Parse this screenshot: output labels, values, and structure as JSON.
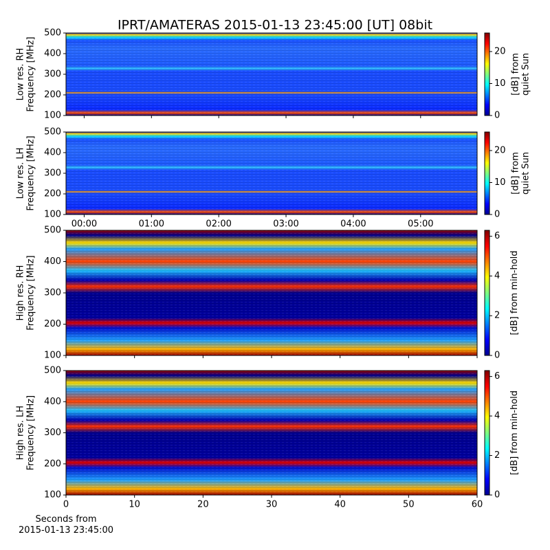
{
  "chart_data": [
    {
      "type": "spectrogram",
      "title": "IPRT/AMATERAS 2015-01-13 23:45:00 [UT]   08bit",
      "ylabel": [
        "Low res. RH",
        "Frequency [MHz]"
      ],
      "ylim": [
        100,
        500
      ],
      "yticks": [
        100,
        200,
        300,
        400,
        500
      ],
      "colorbar_label": [
        "[dB] from",
        "quiet Sun"
      ],
      "clim": [
        0,
        25.8
      ],
      "cticks": [
        0,
        10,
        20
      ]
    },
    {
      "type": "spectrogram",
      "ylabel": [
        "Low res. LH",
        "Frequency [MHz]"
      ],
      "ylim": [
        100,
        500
      ],
      "yticks": [
        100,
        200,
        300,
        400,
        500
      ],
      "xlim": [
        -0.27,
        5.84
      ],
      "xticks": [
        {
          "value": 0,
          "label": "00:00"
        },
        {
          "value": 1,
          "label": "01:00"
        },
        {
          "value": 2,
          "label": "02:00"
        },
        {
          "value": 3,
          "label": "03:00"
        },
        {
          "value": 4,
          "label": "04:00"
        },
        {
          "value": 5,
          "label": "05:00"
        }
      ],
      "colorbar_label": [
        "[dB] from",
        "quiet Sun"
      ],
      "clim": [
        0,
        25.8
      ],
      "cticks": [
        0,
        10,
        20
      ]
    },
    {
      "type": "spectrogram",
      "ylabel": [
        "High res. RH",
        "Frequency [MHz]"
      ],
      "ylim": [
        100,
        500
      ],
      "yticks": [
        100,
        200,
        300,
        400,
        500
      ],
      "colorbar_label": [
        "[dB] from min-hold"
      ],
      "clim": [
        0,
        6.3
      ],
      "cticks": [
        0,
        2,
        4,
        6
      ]
    },
    {
      "type": "spectrogram",
      "ylabel": [
        "High res. LH",
        "Frequency [MHz]"
      ],
      "ylim": [
        100,
        500
      ],
      "yticks": [
        100,
        200,
        300,
        400,
        500
      ],
      "xlim": [
        0,
        60
      ],
      "xticks": [
        0,
        10,
        20,
        30,
        40,
        50,
        60
      ],
      "xlabel": [
        "Seconds from",
        "2015-01-13 23:45:00"
      ],
      "colorbar_label": [
        "[dB] from min-hold"
      ],
      "clim": [
        0,
        6.3
      ],
      "cticks": [
        0,
        2,
        4,
        6
      ]
    }
  ]
}
